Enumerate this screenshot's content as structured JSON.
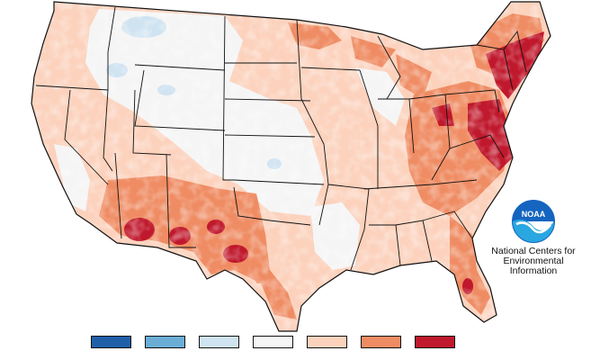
{
  "organization": {
    "logo_text": "NOAA",
    "name_lines": [
      "National Centers for",
      "Environmental",
      "Information"
    ]
  },
  "legend": {
    "swatches": [
      {
        "id": "much-below",
        "color": "#1f5fa8"
      },
      {
        "id": "below",
        "color": "#6aaed6"
      },
      {
        "id": "slightly-below",
        "color": "#cfe3f1"
      },
      {
        "id": "near",
        "color": "#f5f5f5"
      },
      {
        "id": "slightly-above",
        "color": "#fcd2bd"
      },
      {
        "id": "above",
        "color": "#ef8c63"
      },
      {
        "id": "much-above",
        "color": "#c0182c"
      }
    ]
  },
  "map": {
    "state_border_color": "#111111",
    "base_fill": "#f5f5f5"
  }
}
